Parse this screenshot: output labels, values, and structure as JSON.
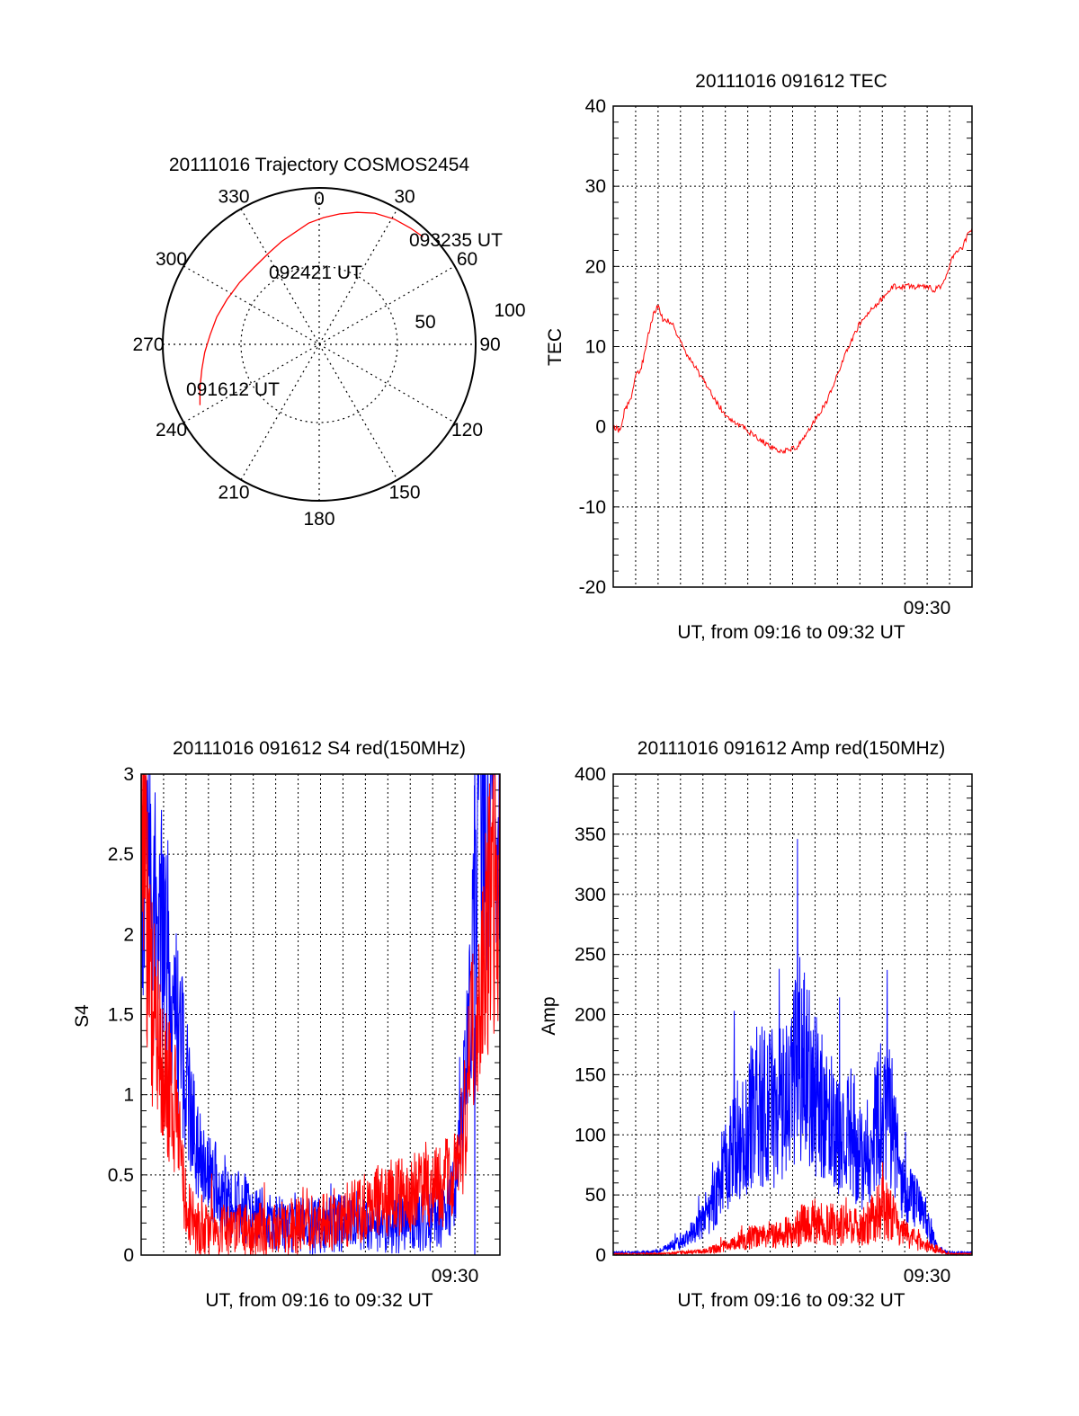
{
  "chart_data": [
    {
      "type": "polar",
      "title": "20111016 Trajectory COSMOS2454",
      "angle_labels": [
        "0",
        "30",
        "60",
        "90",
        "120",
        "150",
        "180",
        "210",
        "240",
        "270",
        "300",
        "330"
      ],
      "radius_labels": [
        "50",
        "100"
      ],
      "trajectory": {
        "color": "#ff0000",
        "points": [
          {
            "az": 243,
            "el": 13
          },
          {
            "az": 250,
            "el": 17
          },
          {
            "az": 258,
            "el": 21
          },
          {
            "az": 266,
            "el": 24
          },
          {
            "az": 275,
            "el": 27
          },
          {
            "az": 285,
            "el": 29
          },
          {
            "az": 296,
            "el": 31
          },
          {
            "az": 308,
            "el": 32
          },
          {
            "az": 320,
            "el": 32
          },
          {
            "az": 331,
            "el": 30
          },
          {
            "az": 340,
            "el": 27
          },
          {
            "az": 348,
            "el": 24
          },
          {
            "az": 355,
            "el": 20
          },
          {
            "az": 2,
            "el": 17
          },
          {
            "az": 9,
            "el": 14
          },
          {
            "az": 16,
            "el": 11
          },
          {
            "az": 23,
            "el": 8
          },
          {
            "az": 31,
            "el": 6
          },
          {
            "az": 38,
            "el": 5
          },
          {
            "az": 44,
            "el": 4
          }
        ]
      },
      "point_labels": [
        "091612 UT",
        "092421 UT",
        "093235 UT"
      ]
    },
    {
      "type": "line",
      "title": "20111016 091612 TEC",
      "ylabel": "TEC",
      "xlabel": "UT, from 09:16 to 09:32 UT",
      "xtick_label": "09:30",
      "xlim": [
        0,
        16
      ],
      "ylim": [
        -20,
        40
      ],
      "yticks": [
        -20,
        -10,
        0,
        10,
        20,
        30,
        40
      ],
      "series": [
        {
          "color": "#ff0000",
          "x": [
            0,
            0.3,
            0.5,
            0.8,
            1.0,
            1.2,
            1.4,
            1.6,
            1.8,
            2.0,
            2.2,
            2.6,
            3.0,
            3.5,
            4.0,
            4.5,
            5.0,
            5.5,
            6.0,
            6.5,
            7.0,
            7.5,
            7.8,
            8.2,
            8.6,
            9.0,
            9.5,
            10.0,
            10.5,
            11.0,
            11.5,
            12.0,
            12.5,
            13.0,
            13.5,
            14.0,
            14.3,
            14.6,
            14.9,
            15.1,
            15.3,
            15.6,
            15.8,
            16.0
          ],
          "y": [
            0,
            -0.5,
            2,
            3.5,
            6.5,
            7,
            9,
            12,
            14,
            15,
            13.5,
            13,
            10.5,
            8,
            6,
            3.5,
            1.5,
            0.5,
            -0.5,
            -1.5,
            -2.5,
            -3,
            -3,
            -2.5,
            -1,
            1,
            3,
            6.5,
            10,
            13,
            14.5,
            16,
            17.5,
            17.5,
            17.5,
            17.5,
            17,
            17.5,
            19,
            21,
            22,
            22.5,
            24,
            24.5
          ]
        }
      ]
    },
    {
      "type": "line",
      "title": "20111016 091612 S4 red(150MHz)",
      "ylabel": "S4",
      "xlabel": "UT, from 09:16 to 09:32 UT",
      "xtick_label": "09:30",
      "xlim": [
        0,
        16
      ],
      "ylim": [
        0,
        3
      ],
      "yticks": [
        0,
        0.5,
        1,
        1.5,
        2,
        2.5,
        3
      ],
      "series": [
        {
          "color": "#0000ff",
          "x": [
            0,
            0.5,
            1.0,
            1.5,
            2.0,
            2.5,
            3.0,
            3.5,
            4.0,
            5.0,
            6.0,
            7.0,
            8.0,
            9.0,
            10.0,
            11.0,
            12.0,
            13.0,
            13.5,
            14.0,
            14.3,
            14.6,
            15.0,
            15.5,
            16.0
          ],
          "y": [
            2.5,
            2.2,
            2.0,
            1.6,
            1.0,
            0.7,
            0.5,
            0.4,
            0.35,
            0.25,
            0.2,
            0.18,
            0.18,
            0.2,
            0.22,
            0.2,
            0.2,
            0.22,
            0.25,
            0.4,
            0.8,
            1.5,
            2.5,
            3.0,
            3.0
          ]
        },
        {
          "color": "#ff0000",
          "x": [
            0,
            0.5,
            1.0,
            1.5,
            2.0,
            2.5,
            3.0,
            3.5,
            4.0,
            5.0,
            6.0,
            7.0,
            8.0,
            9.0,
            10.0,
            11.0,
            12.0,
            13.0,
            13.5,
            14.0,
            14.3,
            14.6,
            15.0,
            15.5,
            16.0
          ],
          "y": [
            2.8,
            1.6,
            1.2,
            0.9,
            0.3,
            0.18,
            0.15,
            0.15,
            0.15,
            0.15,
            0.17,
            0.18,
            0.2,
            0.25,
            0.3,
            0.35,
            0.38,
            0.4,
            0.45,
            0.5,
            0.7,
            1.1,
            1.6,
            2.1,
            2.3
          ]
        }
      ]
    },
    {
      "type": "line",
      "title": "20111016 091612 Amp red(150MHz)",
      "ylabel": "Amp",
      "xlabel": "UT, from 09:16 to 09:32 UT",
      "xtick_label": "09:30",
      "xlim": [
        0,
        16
      ],
      "ylim": [
        0,
        400
      ],
      "yticks": [
        0,
        50,
        100,
        150,
        200,
        250,
        300,
        350,
        400
      ],
      "series": [
        {
          "color": "#0000ff",
          "x": [
            0,
            1.0,
            2.0,
            2.6,
            3.2,
            3.8,
            4.4,
            5.0,
            5.6,
            6.0,
            6.4,
            6.8,
            7.2,
            7.6,
            8.0,
            8.3,
            8.6,
            9.0,
            9.5,
            10.0,
            10.4,
            10.8,
            11.2,
            11.6,
            12.0,
            12.4,
            12.8,
            13.2,
            13.6,
            14.0,
            14.5,
            15.0,
            16.0
          ],
          "y": [
            2,
            2,
            3,
            8,
            12,
            25,
            40,
            75,
            95,
            110,
            120,
            125,
            120,
            130,
            140,
            165,
            150,
            135,
            120,
            100,
            110,
            95,
            80,
            105,
            120,
            110,
            70,
            50,
            40,
            25,
            5,
            2,
            2
          ]
        },
        {
          "color": "#ff0000",
          "x": [
            0,
            1.0,
            2.0,
            3.0,
            4.0,
            4.5,
            5.0,
            5.5,
            6.0,
            6.5,
            7.0,
            7.5,
            8.0,
            8.5,
            9.0,
            9.5,
            10.0,
            10.5,
            11.0,
            11.5,
            12.0,
            12.5,
            13.0,
            13.5,
            14.0,
            14.5,
            15.0,
            16.0
          ],
          "y": [
            1,
            1,
            1,
            2,
            3,
            5,
            8,
            12,
            14,
            16,
            17,
            18,
            20,
            25,
            28,
            26,
            25,
            24,
            22,
            30,
            40,
            30,
            18,
            12,
            8,
            4,
            1,
            1
          ]
        }
      ]
    }
  ]
}
